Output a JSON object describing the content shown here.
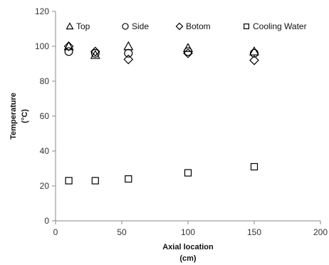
{
  "chart_data": {
    "type": "scatter",
    "title": "",
    "xlabel": "Axial location",
    "xlabel_unit": "(cm)",
    "ylabel": "Temperature",
    "ylabel_unit": "(°C)",
    "xlim": [
      0,
      200
    ],
    "ylim": [
      0,
      120
    ],
    "xticks": [
      0,
      50,
      100,
      150,
      200
    ],
    "yticks": [
      0,
      20,
      40,
      60,
      80,
      100,
      120
    ],
    "grid": false,
    "legend_position": "top",
    "series": [
      {
        "name": "Top",
        "marker": "triangle",
        "color": "#000000",
        "points": [
          [
            10,
            100
          ],
          [
            30,
            95
          ],
          [
            55,
            100
          ],
          [
            100,
            99
          ],
          [
            150,
            97
          ]
        ]
      },
      {
        "name": "Side",
        "marker": "circle",
        "color": "#000000",
        "points": [
          [
            10,
            97
          ],
          [
            30,
            96
          ],
          [
            55,
            96
          ],
          [
            100,
            97
          ],
          [
            150,
            96
          ]
        ]
      },
      {
        "name": "Botom",
        "marker": "diamond",
        "color": "#000000",
        "points": [
          [
            10,
            100
          ],
          [
            30,
            97
          ],
          [
            55,
            92.5
          ],
          [
            100,
            96
          ],
          [
            150,
            92
          ]
        ]
      },
      {
        "name": "Cooling Water",
        "marker": "square",
        "color": "#000000",
        "points": [
          [
            10,
            23
          ],
          [
            30,
            23
          ],
          [
            55,
            24
          ],
          [
            100,
            27.5
          ],
          [
            150,
            31
          ]
        ]
      }
    ]
  }
}
